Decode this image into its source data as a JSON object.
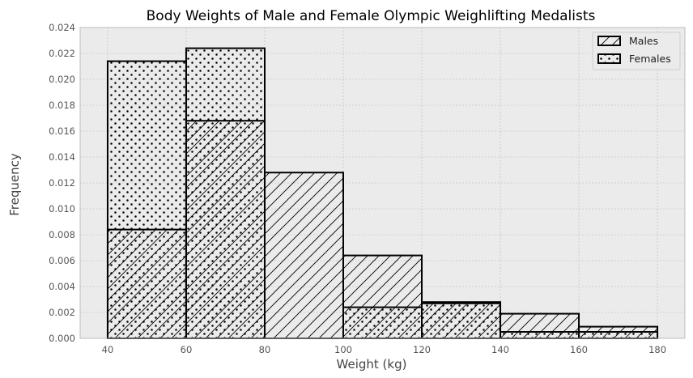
{
  "chart_data": {
    "type": "histogram",
    "title": "Body Weights of Male and Female Olympic Weighlifting Medalists",
    "xlabel": "Weight (kg)",
    "ylabel": "Frequency",
    "xlim": [
      33,
      187
    ],
    "ylim": [
      0,
      0.024
    ],
    "xticks": [
      40,
      60,
      80,
      100,
      120,
      140,
      160,
      180
    ],
    "yticks": [
      0,
      0.002,
      0.004,
      0.006,
      0.008,
      0.01,
      0.012,
      0.014,
      0.016,
      0.018,
      0.02,
      0.022,
      0.024
    ],
    "ytick_labels": [
      "0.000",
      "0.002",
      "0.004",
      "0.006",
      "0.008",
      "0.010",
      "0.012",
      "0.014",
      "0.016",
      "0.018",
      "0.020",
      "0.022",
      "0.024"
    ],
    "bin_edges": [
      40,
      60,
      80,
      100,
      120,
      140,
      160,
      180
    ],
    "series": [
      {
        "name": "Males",
        "pattern": "hatch",
        "values": [
          0.0084,
          0.0168,
          0.0128,
          0.0064,
          0.0028,
          0.0019,
          0.0009
        ]
      },
      {
        "name": "Females",
        "pattern": "dots",
        "values": [
          0.0214,
          0.0224,
          0.0,
          0.0024,
          0.0027,
          0.0005,
          0.0005
        ]
      }
    ],
    "grid": true,
    "legend_position": "top-right",
    "colors": {
      "background": "#ebebeb",
      "bar_fill": "#ebebeb",
      "edge": "#000000",
      "grid": "#b9b9b9"
    }
  }
}
